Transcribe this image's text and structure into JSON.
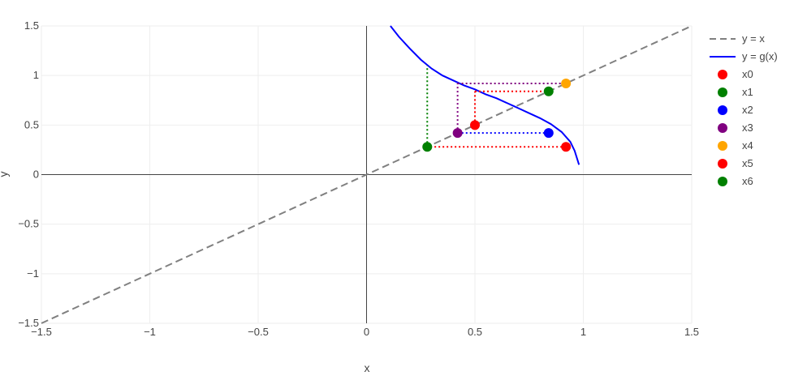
{
  "chart_data": {
    "type": "line",
    "xlabel": "x",
    "ylabel": "y",
    "xlim": [
      -1.5,
      1.5
    ],
    "ylim": [
      -1.5,
      1.5
    ],
    "xticks": [
      -1.5,
      -1,
      -0.5,
      0,
      0.5,
      1,
      1.5
    ],
    "yticks": [
      -1.5,
      -1,
      -0.5,
      0,
      0.5,
      1,
      1.5
    ],
    "xtick_labels": [
      "−1.5",
      "−1",
      "−0.5",
      "0",
      "0.5",
      "1",
      "1.5"
    ],
    "ytick_labels": [
      "−1.5",
      "−1",
      "−0.5",
      "0",
      "0.5",
      "1",
      "1.5"
    ],
    "grid": true,
    "legend_position": "right",
    "lines": [
      {
        "name": "y = x",
        "style": "dashed",
        "color": "#808080",
        "x": [
          -1.5,
          1.5
        ],
        "y": [
          -1.5,
          1.5
        ]
      },
      {
        "name": "y = g(x)",
        "style": "solid",
        "color": "#0000ff",
        "x": [
          0.11,
          0.15,
          0.2,
          0.25,
          0.3,
          0.35,
          0.4,
          0.45,
          0.5,
          0.55,
          0.6,
          0.65,
          0.7,
          0.75,
          0.8,
          0.85,
          0.9,
          0.94,
          0.96,
          0.98
        ],
        "y": [
          1.5,
          1.39,
          1.27,
          1.16,
          1.07,
          1.0,
          0.95,
          0.9,
          0.86,
          0.81,
          0.77,
          0.72,
          0.67,
          0.62,
          0.57,
          0.51,
          0.43,
          0.33,
          0.24,
          0.1
        ]
      }
    ],
    "cobweb": [
      {
        "color": "#ff0000",
        "x": [
          0.5,
          0.5
        ],
        "y": [
          0.5,
          0.84
        ]
      },
      {
        "color": "#ff0000",
        "x": [
          0.5,
          0.84
        ],
        "y": [
          0.84,
          0.84
        ]
      },
      {
        "color": "#0000ff",
        "x": [
          0.84,
          0.42
        ],
        "y": [
          0.42,
          0.42
        ]
      },
      {
        "color": "#800080",
        "x": [
          0.42,
          0.42
        ],
        "y": [
          0.42,
          0.92
        ]
      },
      {
        "color": "#800080",
        "x": [
          0.42,
          0.92
        ],
        "y": [
          0.92,
          0.92
        ]
      },
      {
        "color": "#ff0000",
        "x": [
          0.92,
          0.28
        ],
        "y": [
          0.28,
          0.28
        ]
      },
      {
        "color": "#008000",
        "x": [
          0.28,
          0.28
        ],
        "y": [
          0.28,
          1.1
        ]
      }
    ],
    "points": [
      {
        "name": "x0",
        "x": 0.5,
        "y": 0.5,
        "color": "#ff0000"
      },
      {
        "name": "x1",
        "x": 0.84,
        "y": 0.84,
        "color": "#008000"
      },
      {
        "name": "x2",
        "x": 0.84,
        "y": 0.42,
        "color": "#0000ff"
      },
      {
        "name": "x3",
        "x": 0.42,
        "y": 0.42,
        "color": "#800080"
      },
      {
        "name": "x4",
        "x": 0.92,
        "y": 0.92,
        "color": "#ffa500"
      },
      {
        "name": "x5",
        "x": 0.92,
        "y": 0.28,
        "color": "#ff0000"
      },
      {
        "name": "x6",
        "x": 0.28,
        "y": 0.28,
        "color": "#008000"
      }
    ]
  }
}
